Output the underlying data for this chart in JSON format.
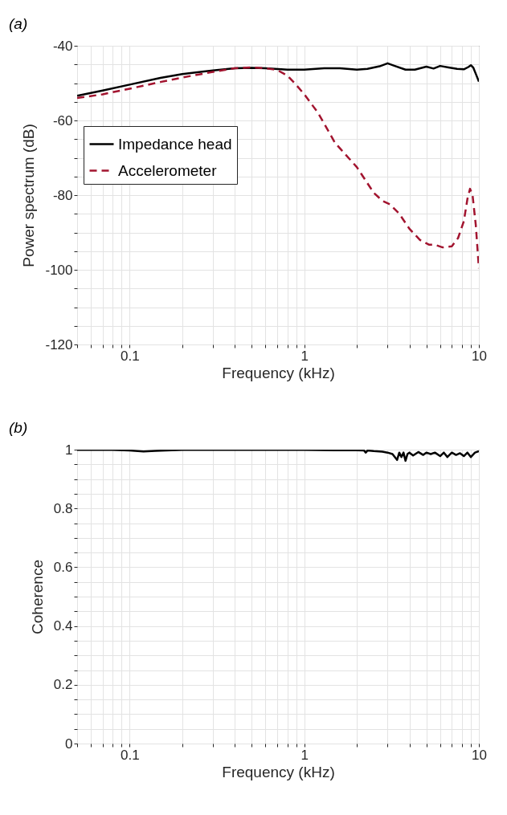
{
  "chart_data": [
    {
      "type": "line",
      "title": "(a)",
      "xlabel": "Frequency (kHz)",
      "ylabel": "Power spectrum (dB)",
      "log": "x",
      "grid": true,
      "legend": "top left",
      "xlim": [
        0.05,
        10
      ],
      "xticks": [
        {
          "value": 0.05,
          "label": null
        },
        {
          "value": 0.06,
          "label": null
        },
        {
          "value": 0.07,
          "label": null
        },
        {
          "value": 0.08,
          "label": null
        },
        {
          "value": 0.09,
          "label": null
        },
        0.1,
        {
          "value": 0.2,
          "label": null
        },
        {
          "value": 0.3,
          "label": null
        },
        {
          "value": 0.4,
          "label": null
        },
        {
          "value": 0.5,
          "label": null
        },
        {
          "value": 0.6,
          "label": null
        },
        {
          "value": 0.7,
          "label": null
        },
        {
          "value": 0.8,
          "label": null
        },
        {
          "value": 0.9,
          "label": null
        },
        1,
        {
          "value": 2,
          "label": null
        },
        {
          "value": 3,
          "label": null
        },
        {
          "value": 4,
          "label": null
        },
        {
          "value": 5,
          "label": null
        },
        {
          "value": 6,
          "label": null
        },
        {
          "value": 7,
          "label": null
        },
        {
          "value": 8,
          "label": null
        },
        {
          "value": 9,
          "label": null
        },
        10
      ],
      "ylim": [
        -120,
        -40
      ],
      "yticks": [
        -120,
        {
          "value": -115,
          "label": null
        },
        {
          "value": -110,
          "label": null
        },
        {
          "value": -105,
          "label": null
        },
        -100,
        {
          "value": -95,
          "label": null
        },
        {
          "value": -90,
          "label": null
        },
        {
          "value": -85,
          "label": null
        },
        -80,
        {
          "value": -75,
          "label": null
        },
        {
          "value": -70,
          "label": null
        },
        {
          "value": -65,
          "label": null
        },
        -60,
        {
          "value": -55,
          "label": null
        },
        {
          "value": -50,
          "label": null
        },
        {
          "value": -45,
          "label": null
        },
        -40
      ],
      "series": [
        {
          "name": "Impedance head",
          "color": "#000000",
          "line_style": "solid",
          "x": [
            0.05,
            0.07,
            0.1,
            0.15,
            0.2,
            0.3,
            0.4,
            0.5,
            0.6,
            0.8,
            1,
            1.3,
            1.6,
            2,
            2.3,
            2.7,
            3,
            3.3,
            3.8,
            4.3,
            5,
            5.5,
            6,
            6.7,
            7.5,
            8.2,
            8.7,
            9,
            9.3,
            9.6,
            10
          ],
          "values": [
            -53.4,
            -52,
            -50.4,
            -48.6,
            -47.6,
            -46.6,
            -46,
            -45.9,
            -46,
            -46.4,
            -46.4,
            -46,
            -46,
            -46.4,
            -46.2,
            -45.5,
            -44.7,
            -45.4,
            -46.4,
            -46.4,
            -45.6,
            -46.1,
            -45.4,
            -45.8,
            -46.2,
            -46.3,
            -45.7,
            -45.2,
            -45.9,
            -47.5,
            -49.6
          ]
        },
        {
          "name": "Accelerometer",
          "color": "#a2142f",
          "line_style": "dashed",
          "x": [
            0.05,
            0.07,
            0.1,
            0.15,
            0.2,
            0.3,
            0.4,
            0.5,
            0.6,
            0.7,
            0.8,
            0.9,
            1,
            1.2,
            1.5,
            2,
            2.5,
            2.8,
            3.1,
            3.5,
            4,
            4.6,
            5.2,
            5.6,
            6.2,
            7,
            7.6,
            8.2,
            8.6,
            8.9,
            9.2,
            9.6,
            10
          ],
          "values": [
            -54,
            -53,
            -51.5,
            -49.7,
            -48.5,
            -47,
            -46,
            -45.8,
            -46,
            -46.5,
            -48,
            -50.5,
            -53,
            -58,
            -66,
            -72.5,
            -79.4,
            -81.5,
            -82.5,
            -85,
            -89,
            -92,
            -93.3,
            -93.3,
            -94,
            -93.7,
            -91.5,
            -87,
            -81,
            -78.3,
            -80,
            -88,
            -99.6
          ]
        }
      ]
    },
    {
      "type": "line",
      "title": "(b)",
      "xlabel": "Frequency (kHz)",
      "ylabel": "Coherence",
      "log": "x",
      "grid": true,
      "xlim": [
        0.05,
        10
      ],
      "xticks": [
        {
          "value": 0.05,
          "label": null
        },
        {
          "value": 0.06,
          "label": null
        },
        {
          "value": 0.07,
          "label": null
        },
        {
          "value": 0.08,
          "label": null
        },
        {
          "value": 0.09,
          "label": null
        },
        0.1,
        {
          "value": 0.2,
          "label": null
        },
        {
          "value": 0.3,
          "label": null
        },
        {
          "value": 0.4,
          "label": null
        },
        {
          "value": 0.5,
          "label": null
        },
        {
          "value": 0.6,
          "label": null
        },
        {
          "value": 0.7,
          "label": null
        },
        {
          "value": 0.8,
          "label": null
        },
        {
          "value": 0.9,
          "label": null
        },
        1,
        {
          "value": 2,
          "label": null
        },
        {
          "value": 3,
          "label": null
        },
        {
          "value": 4,
          "label": null
        },
        {
          "value": 5,
          "label": null
        },
        {
          "value": 6,
          "label": null
        },
        {
          "value": 7,
          "label": null
        },
        {
          "value": 8,
          "label": null
        },
        {
          "value": 9,
          "label": null
        },
        10
      ],
      "ylim": [
        0,
        1
      ],
      "yticks": [
        0,
        {
          "value": 0.05,
          "label": null
        },
        {
          "value": 0.1,
          "label": null
        },
        {
          "value": 0.15,
          "label": null
        },
        0.2,
        {
          "value": 0.25,
          "label": null
        },
        {
          "value": 0.3,
          "label": null
        },
        {
          "value": 0.35,
          "label": null
        },
        0.4,
        {
          "value": 0.45,
          "label": null
        },
        {
          "value": 0.5,
          "label": null
        },
        {
          "value": 0.55,
          "label": null
        },
        0.6,
        {
          "value": 0.65,
          "label": null
        },
        {
          "value": 0.7,
          "label": null
        },
        {
          "value": 0.75,
          "label": null
        },
        0.8,
        {
          "value": 0.85,
          "label": null
        },
        {
          "value": 0.9,
          "label": null
        },
        {
          "value": 0.95,
          "label": null
        },
        1
      ],
      "series": [
        {
          "color": "#000000",
          "x": [
            0.05,
            0.08,
            0.1,
            0.12,
            0.14,
            0.2,
            0.5,
            1,
            1.5,
            2,
            2.2,
            2.25,
            2.3,
            2.5,
            2.8,
            3,
            3.2,
            3.4,
            3.5,
            3.6,
            3.7,
            3.8,
            3.9,
            4,
            4.2,
            4.5,
            4.8,
            5,
            5.3,
            5.6,
            6,
            6.3,
            6.6,
            7,
            7.4,
            7.8,
            8.2,
            8.6,
            9,
            9.5,
            10
          ],
          "values": [
            0.999,
            0.999,
            0.997,
            0.994,
            0.996,
            0.999,
            0.999,
            0.999,
            0.998,
            0.998,
            0.997,
            0.99,
            0.997,
            0.995,
            0.993,
            0.99,
            0.985,
            0.965,
            0.99,
            0.975,
            0.99,
            0.962,
            0.985,
            0.99,
            0.98,
            0.992,
            0.982,
            0.99,
            0.985,
            0.99,
            0.978,
            0.99,
            0.975,
            0.99,
            0.982,
            0.988,
            0.978,
            0.99,
            0.975,
            0.99,
            0.995
          ]
        }
      ]
    }
  ]
}
